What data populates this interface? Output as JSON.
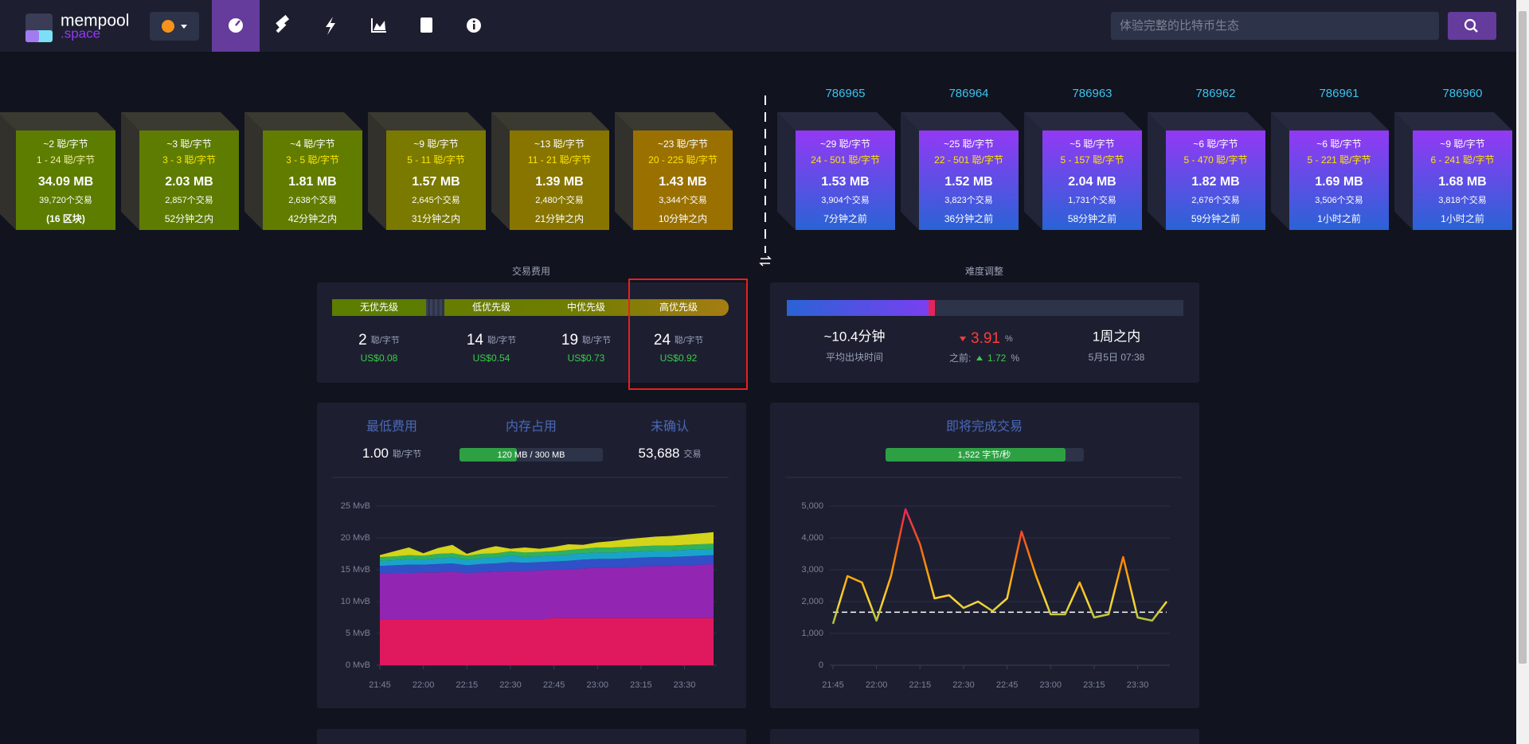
{
  "nav": {
    "logo_main": "mempool",
    "logo_sub": ".space",
    "search_placeholder": "体验完整的比特币生态"
  },
  "pending_blocks": [
    {
      "fee": "~2 聪/字节",
      "range": "1 - 24 聪/字节",
      "size": "34.09 MB",
      "txs": "39,720个交易",
      "time": "(16 区块)"
    },
    {
      "fee": "~3 聪/字节",
      "range": "3 - 3 聪/字节",
      "size": "2.03 MB",
      "txs": "2,857个交易",
      "time": "52分钟之内"
    },
    {
      "fee": "~4 聪/字节",
      "range": "3 - 5 聪/字节",
      "size": "1.81 MB",
      "txs": "2,638个交易",
      "time": "42分钟之内"
    },
    {
      "fee": "~9 聪/字节",
      "range": "5 - 11 聪/字节",
      "size": "1.57 MB",
      "txs": "2,645个交易",
      "time": "31分钟之内"
    },
    {
      "fee": "~13 聪/字节",
      "range": "11 - 21 聪/字节",
      "size": "1.39 MB",
      "txs": "2,480个交易",
      "time": "21分钟之内"
    },
    {
      "fee": "~23 聪/字节",
      "range": "20 - 225 聪/字节",
      "size": "1.43 MB",
      "txs": "3,344个交易",
      "time": "10分钟之内"
    }
  ],
  "mined_blocks": [
    {
      "height": "786965",
      "fee": "~29 聪/字节",
      "range": "24 - 501 聪/字节",
      "size": "1.53 MB",
      "txs": "3,904个交易",
      "time": "7分钟之前"
    },
    {
      "height": "786964",
      "fee": "~25 聪/字节",
      "range": "22 - 501 聪/字节",
      "size": "1.52 MB",
      "txs": "3,823个交易",
      "time": "36分钟之前"
    },
    {
      "height": "786963",
      "fee": "~5 聪/字节",
      "range": "5 - 157 聪/字节",
      "size": "2.04 MB",
      "txs": "1,731个交易",
      "time": "58分钟之前"
    },
    {
      "height": "786962",
      "fee": "~6 聪/字节",
      "range": "5 - 470 聪/字节",
      "size": "1.82 MB",
      "txs": "2,676个交易",
      "time": "59分钟之前"
    },
    {
      "height": "786961",
      "fee": "~6 聪/字节",
      "range": "5 - 221 聪/字节",
      "size": "1.69 MB",
      "txs": "3,506个交易",
      "time": "1小时之前"
    },
    {
      "height": "786960",
      "fee": "~9 聪/字节",
      "range": "6 - 241 聪/字节",
      "size": "1.68 MB",
      "txs": "3,818个交易",
      "time": "1小时之前"
    }
  ],
  "fees": {
    "title": "交易费用",
    "unit": "聪/字节",
    "tiers": [
      {
        "label": "无优先级",
        "value": "2",
        "usd": "US$0.08"
      },
      {
        "label": "低优先级",
        "value": "14",
        "usd": "US$0.54"
      },
      {
        "label": "中优先级",
        "value": "19",
        "usd": "US$0.73"
      },
      {
        "label": "高优先级",
        "value": "24",
        "usd": "US$0.92"
      }
    ]
  },
  "difficulty": {
    "title": "难度调整",
    "avg_time": "~10.4分钟",
    "avg_time_label": "平均出块时间",
    "change": "3.91",
    "change_unit": "%",
    "prev_label": "之前:",
    "prev": "1.72",
    "prev_unit": "%",
    "eta": "1周之内",
    "eta_date": "5月5日 07:38"
  },
  "mempool": {
    "min_fee_label": "最低费用",
    "min_fee": "1.00",
    "min_fee_unit": "聪/字节",
    "memory_label": "内存占用",
    "memory": "120 MB / 300 MB",
    "unconfirmed_label": "未确认",
    "unconfirmed": "53,688",
    "unconfirmed_unit": "交易"
  },
  "incoming": {
    "title": "即将完成交易",
    "rate": "1,522 字节/秒"
  },
  "chart_data": [
    {
      "type": "area",
      "stacked": true,
      "grid": true,
      "x": [
        "21:45",
        null,
        null,
        "22:00",
        null,
        null,
        "22:15",
        null,
        null,
        "22:30",
        null,
        null,
        "22:45",
        null,
        null,
        "23:00",
        null,
        null,
        "23:15",
        null,
        null,
        "23:30",
        null,
        null
      ],
      "ylim": [
        0,
        25
      ],
      "yticks": [
        {
          "value": 0,
          "label": "0 MvB"
        },
        {
          "value": 5,
          "label": "5 MvB"
        },
        {
          "value": 10,
          "label": "10 MvB"
        },
        {
          "value": 15,
          "label": "15 MvB"
        },
        {
          "value": 20,
          "label": "20 MvB"
        },
        {
          "value": 25,
          "label": "25 MvB"
        }
      ],
      "series": [
        {
          "color": "#e0195f",
          "values": [
            7.2,
            7.2,
            7.2,
            7.2,
            7.2,
            7.2,
            7.2,
            7.2,
            7.2,
            7.2,
            7.2,
            7.2,
            7.4,
            7.4,
            7.4,
            7.4,
            7.4,
            7.4,
            7.4,
            7.4,
            7.4,
            7.4,
            7.4,
            7.4
          ]
        },
        {
          "color": "#9226b3",
          "values": [
            7.2,
            7.3,
            7.3,
            7.4,
            7.4,
            7.5,
            7.3,
            7.4,
            7.5,
            7.6,
            7.6,
            7.7,
            7.6,
            7.7,
            7.8,
            7.9,
            8.0,
            8.0,
            8.1,
            8.2,
            8.2,
            8.3,
            8.4,
            8.5
          ]
        },
        {
          "color": "#3050c8",
          "values": [
            1.2,
            1.2,
            1.3,
            1.2,
            1.3,
            1.3,
            1.2,
            1.3,
            1.3,
            1.4,
            1.3,
            1.3,
            1.3,
            1.3,
            1.4,
            1.4,
            1.3,
            1.4,
            1.4,
            1.4,
            1.4,
            1.4,
            1.4,
            1.4
          ]
        },
        {
          "color": "#1aa3c9",
          "values": [
            0.8,
            0.8,
            0.9,
            0.8,
            0.9,
            0.9,
            0.9,
            0.9,
            0.9,
            1.0,
            0.9,
            0.9,
            0.9,
            1.0,
            1.0,
            1.0,
            1.0,
            1.0,
            1.0,
            1.0,
            1.0,
            1.0,
            1.0,
            1.0
          ]
        },
        {
          "color": "#2fb15e",
          "values": [
            0.6,
            0.6,
            0.6,
            0.6,
            0.7,
            0.7,
            0.6,
            0.7,
            0.7,
            0.7,
            0.7,
            0.7,
            0.7,
            0.7,
            0.7,
            0.8,
            0.8,
            0.8,
            0.8,
            0.8,
            0.8,
            0.8,
            0.8,
            0.8
          ]
        },
        {
          "color": "#d4d41a",
          "values": [
            0.3,
            0.8,
            1.2,
            0.4,
            0.9,
            1.3,
            0.3,
            0.7,
            1.1,
            0.4,
            0.8,
            0.5,
            0.7,
            0.9,
            0.6,
            0.8,
            1.0,
            1.2,
            1.3,
            1.4,
            1.5,
            1.6,
            1.7,
            1.8
          ]
        }
      ]
    },
    {
      "type": "line",
      "grid": true,
      "x": [
        "21:45",
        null,
        null,
        "22:00",
        null,
        null,
        "22:15",
        null,
        null,
        "22:30",
        null,
        null,
        "22:45",
        null,
        null,
        "23:00",
        null,
        null,
        "23:15",
        null,
        null,
        "23:30",
        null,
        null
      ],
      "ylim": [
        0,
        5000
      ],
      "yticks": [
        0,
        {
          "value": 1000,
          "label": "1,000"
        },
        {
          "value": 2000,
          "label": "2,000"
        },
        {
          "value": 3000,
          "label": "3,000"
        },
        {
          "value": 4000,
          "label": "4,000"
        },
        {
          "value": 5000,
          "label": "5,000"
        }
      ],
      "gradient": [
        "#7cb342",
        "#fdd835",
        "#ff9800",
        "#f4511e",
        "#e91e63"
      ],
      "threshold": 1667,
      "series": [
        {
          "values": [
            1300,
            2800,
            2600,
            1400,
            2800,
            4900,
            3800,
            2100,
            2200,
            1800,
            2000,
            1700,
            2100,
            4200,
            2800,
            1600,
            1600,
            2600,
            1500,
            1600,
            3400,
            1500,
            1400,
            2000
          ]
        }
      ]
    }
  ]
}
